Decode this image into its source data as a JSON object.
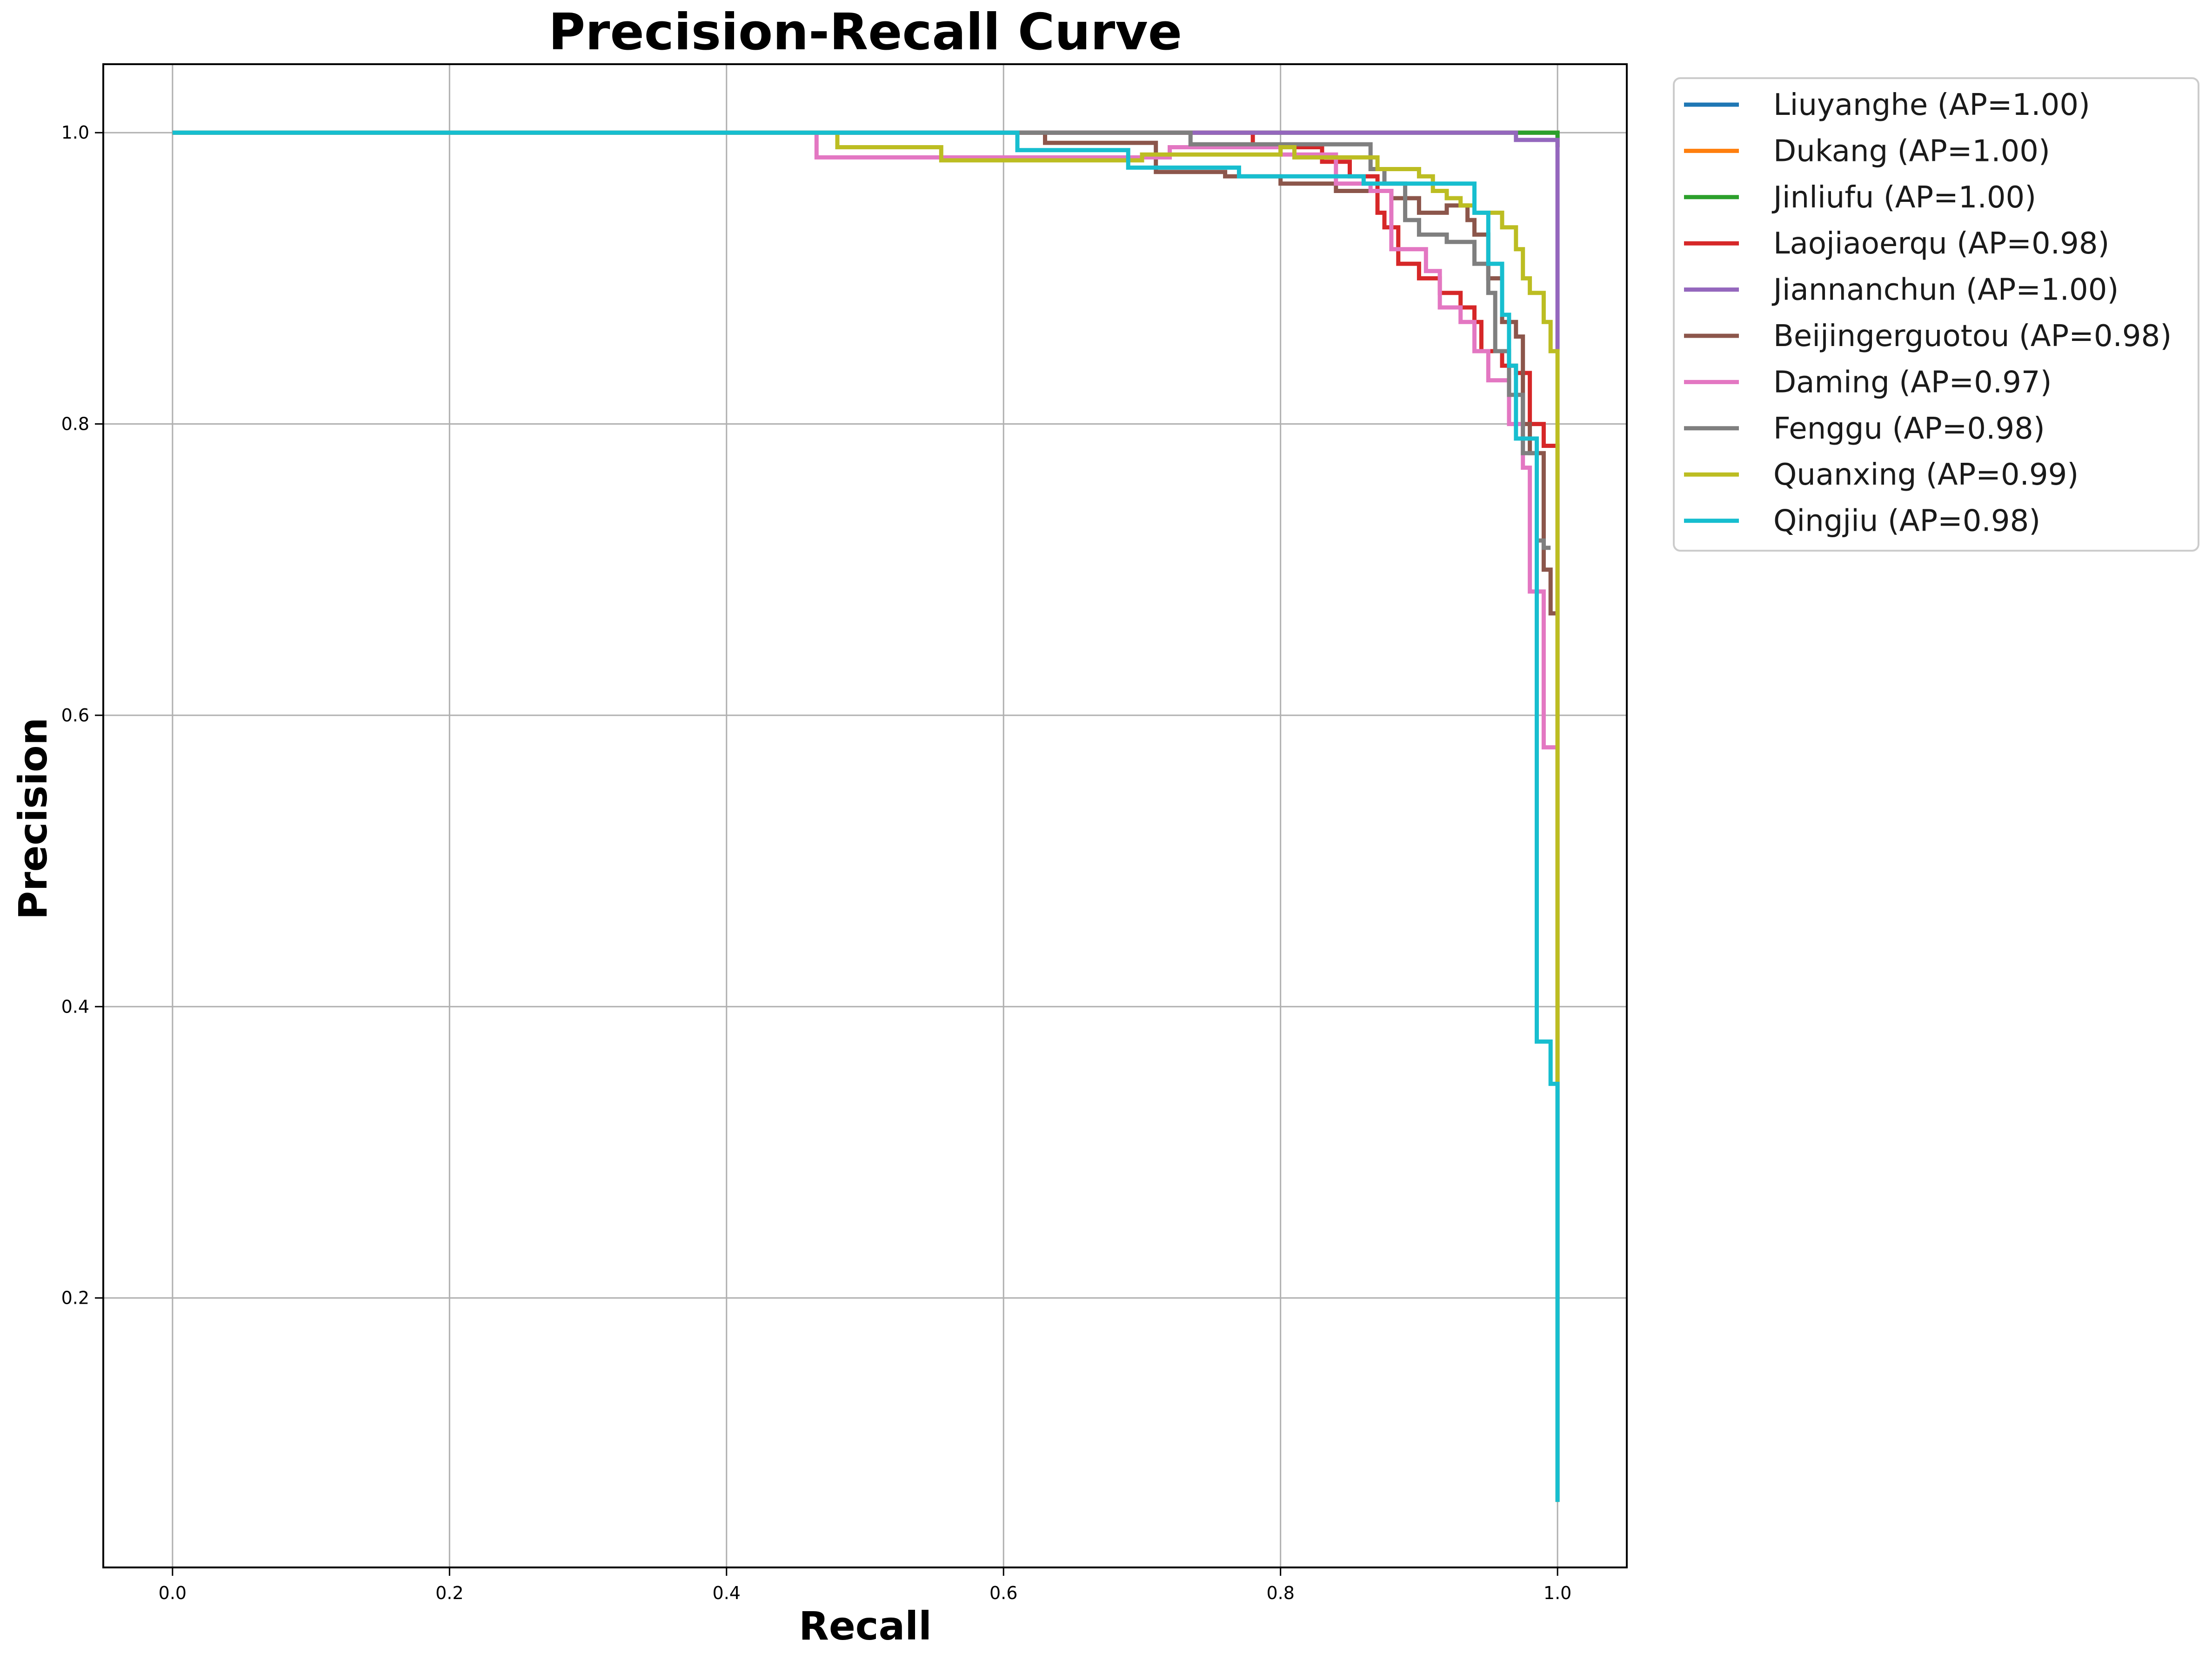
{
  "chart_data": {
    "type": "line",
    "title": "Precision-Recall Curve",
    "xlabel": "Recall",
    "ylabel": "Precision",
    "xlim": [
      -0.05,
      1.05
    ],
    "ylim": [
      0.015,
      1.047
    ],
    "x_ticks": [
      0.0,
      0.2,
      0.4,
      0.6,
      0.8,
      1.0
    ],
    "y_ticks": [
      0.2,
      0.4,
      0.6,
      0.8,
      1.0
    ],
    "x_tick_labels": [
      "0.0",
      "0.2",
      "0.4",
      "0.6",
      "0.8",
      "1.0"
    ],
    "y_tick_labels": [
      "0.2",
      "0.4",
      "0.6",
      "0.8",
      "1.0"
    ],
    "grid": true,
    "legend_position": "outside-top-right",
    "series": [
      {
        "name": "Liuyanghe (AP=1.00)",
        "color": "#1f77b4",
        "points": [
          [
            0,
            1.0
          ],
          [
            1.0,
            1.0
          ],
          [
            1.0,
            0.99
          ]
        ]
      },
      {
        "name": "Dukang (AP=1.00)",
        "color": "#ff7f0e",
        "points": [
          [
            0,
            1.0
          ],
          [
            1.0,
            1.0
          ],
          [
            1.0,
            0.99
          ]
        ]
      },
      {
        "name": "Jinliufu (AP=1.00)",
        "color": "#2ca02c",
        "points": [
          [
            0,
            1.0
          ],
          [
            1.0,
            1.0
          ],
          [
            1.0,
            0.99
          ]
        ]
      },
      {
        "name": "Laojiaoerqu (AP=0.98)",
        "color": "#d62728",
        "points": [
          [
            0,
            1.0
          ],
          [
            0.78,
            1.0
          ],
          [
            0.78,
            0.99
          ],
          [
            0.83,
            0.98
          ],
          [
            0.85,
            0.97
          ],
          [
            0.87,
            0.945
          ],
          [
            0.875,
            0.935
          ],
          [
            0.885,
            0.91
          ],
          [
            0.9,
            0.9
          ],
          [
            0.915,
            0.89
          ],
          [
            0.93,
            0.88
          ],
          [
            0.94,
            0.87
          ],
          [
            0.945,
            0.85
          ],
          [
            0.96,
            0.84
          ],
          [
            0.97,
            0.835
          ],
          [
            0.98,
            0.8
          ],
          [
            0.99,
            0.785
          ],
          [
            1.0,
            0.785
          ],
          [
            1.0,
            0.06
          ]
        ]
      },
      {
        "name": "Jiannanchun (AP=1.00)",
        "color": "#9467bd",
        "points": [
          [
            0,
            1.0
          ],
          [
            0.97,
            1.0
          ],
          [
            0.97,
            0.995
          ],
          [
            0.99,
            0.995
          ],
          [
            1.0,
            0.99
          ],
          [
            1.0,
            0.85
          ]
        ]
      },
      {
        "name": "Beijingerguotou (AP=0.98)",
        "color": "#8c564b",
        "points": [
          [
            0,
            1.0
          ],
          [
            0.63,
            1.0
          ],
          [
            0.63,
            0.993
          ],
          [
            0.71,
            0.983
          ],
          [
            0.71,
            0.973
          ],
          [
            0.76,
            0.97
          ],
          [
            0.8,
            0.965
          ],
          [
            0.84,
            0.96
          ],
          [
            0.87,
            0.96
          ],
          [
            0.88,
            0.955
          ],
          [
            0.9,
            0.945
          ],
          [
            0.92,
            0.95
          ],
          [
            0.935,
            0.94
          ],
          [
            0.94,
            0.93
          ],
          [
            0.95,
            0.9
          ],
          [
            0.96,
            0.87
          ],
          [
            0.97,
            0.86
          ],
          [
            0.975,
            0.8
          ],
          [
            0.98,
            0.78
          ],
          [
            0.99,
            0.7
          ],
          [
            0.995,
            0.67
          ],
          [
            1.0,
            0.67
          ]
        ]
      },
      {
        "name": "Daming (AP=0.97)",
        "color": "#e377c2",
        "points": [
          [
            0,
            1.0
          ],
          [
            0.465,
            1.0
          ],
          [
            0.465,
            0.983
          ],
          [
            0.72,
            0.99
          ],
          [
            0.8,
            0.985
          ],
          [
            0.84,
            0.965
          ],
          [
            0.865,
            0.96
          ],
          [
            0.88,
            0.93
          ],
          [
            0.88,
            0.92
          ],
          [
            0.9,
            0.92
          ],
          [
            0.905,
            0.905
          ],
          [
            0.915,
            0.88
          ],
          [
            0.93,
            0.87
          ],
          [
            0.94,
            0.85
          ],
          [
            0.95,
            0.83
          ],
          [
            0.965,
            0.8
          ],
          [
            0.975,
            0.77
          ],
          [
            0.98,
            0.685
          ],
          [
            0.99,
            0.625
          ],
          [
            0.99,
            0.578
          ],
          [
            1.0,
            0.578
          ]
        ]
      },
      {
        "name": "Fenggu (AP=0.98)",
        "color": "#7f7f7f",
        "points": [
          [
            0,
            1.0
          ],
          [
            0.735,
            1.0
          ],
          [
            0.735,
            0.992
          ],
          [
            0.865,
            0.992
          ],
          [
            0.865,
            0.975
          ],
          [
            0.875,
            0.965
          ],
          [
            0.89,
            0.94
          ],
          [
            0.9,
            0.93
          ],
          [
            0.92,
            0.925
          ],
          [
            0.94,
            0.91
          ],
          [
            0.95,
            0.89
          ],
          [
            0.955,
            0.85
          ],
          [
            0.965,
            0.82
          ],
          [
            0.975,
            0.78
          ],
          [
            0.985,
            0.72
          ],
          [
            0.99,
            0.715
          ],
          [
            0.995,
            0.715
          ]
        ]
      },
      {
        "name": "Quanxing (AP=0.99)",
        "color": "#bcbd22",
        "points": [
          [
            0,
            1.0
          ],
          [
            0.48,
            1.0
          ],
          [
            0.48,
            0.99
          ],
          [
            0.555,
            0.99
          ],
          [
            0.555,
            0.981
          ],
          [
            0.7,
            0.985
          ],
          [
            0.8,
            0.99
          ],
          [
            0.81,
            0.983
          ],
          [
            0.87,
            0.983
          ],
          [
            0.87,
            0.975
          ],
          [
            0.9,
            0.97
          ],
          [
            0.91,
            0.96
          ],
          [
            0.92,
            0.955
          ],
          [
            0.93,
            0.95
          ],
          [
            0.94,
            0.945
          ],
          [
            0.96,
            0.935
          ],
          [
            0.97,
            0.92
          ],
          [
            0.975,
            0.9
          ],
          [
            0.98,
            0.89
          ],
          [
            0.99,
            0.87
          ],
          [
            0.995,
            0.85
          ],
          [
            1.0,
            0.85
          ],
          [
            1.0,
            0.06
          ]
        ]
      },
      {
        "name": "Qingjiu (AP=0.98)",
        "color": "#17becf",
        "points": [
          [
            0,
            1.0
          ],
          [
            0.61,
            1.0
          ],
          [
            0.61,
            0.988
          ],
          [
            0.69,
            0.988
          ],
          [
            0.69,
            0.976
          ],
          [
            0.77,
            0.976
          ],
          [
            0.77,
            0.97
          ],
          [
            0.86,
            0.965
          ],
          [
            0.93,
            0.965
          ],
          [
            0.94,
            0.945
          ],
          [
            0.95,
            0.91
          ],
          [
            0.96,
            0.875
          ],
          [
            0.965,
            0.84
          ],
          [
            0.97,
            0.79
          ],
          [
            0.985,
            0.785
          ],
          [
            0.985,
            0.376
          ],
          [
            0.995,
            0.376
          ],
          [
            0.995,
            0.347
          ],
          [
            1.0,
            0.347
          ],
          [
            1.0,
            0.06
          ]
        ]
      }
    ]
  }
}
